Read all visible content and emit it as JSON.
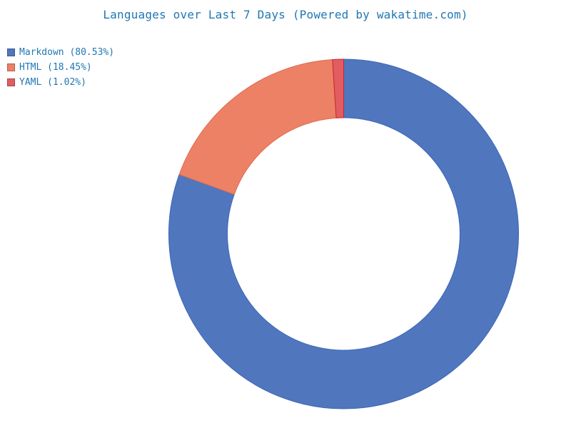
{
  "chart_data": {
    "type": "pie",
    "style": "donut",
    "title": "Languages over Last 7 Days (Powered by wakatime.com)",
    "legend_position": "top-left",
    "start_angle_deg": 0,
    "direction": "clockwise",
    "slices": [
      {
        "name": "Markdown",
        "legend_label": "Markdown (80.53%)",
        "value": 80.53,
        "color": "#5077be",
        "edge": "#3b64b6"
      },
      {
        "name": "HTML",
        "legend_label": "HTML (18.45%)",
        "value": 18.45,
        "color": "#ec8166",
        "edge": "#e06a4e"
      },
      {
        "name": "YAML",
        "legend_label": "YAML (1.02%)",
        "value": 1.02,
        "color": "#e05d62",
        "edge": "#c8262e"
      }
    ]
  }
}
